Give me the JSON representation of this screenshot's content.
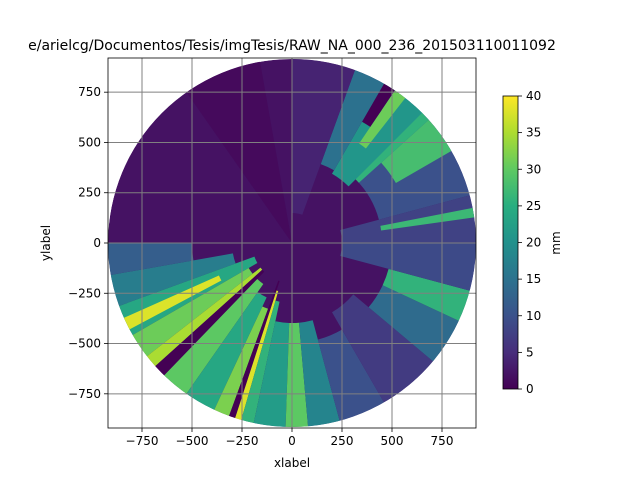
{
  "chart_data": {
    "type": "heatmap",
    "title": "e/arielcg/Documentos/Tesis/imgTesis/RAW_NA_000_236_201503110011092",
    "xlabel": "xlabel",
    "ylabel": "ylabel",
    "xlim": [
      -920,
      920
    ],
    "ylim": [
      -920,
      920
    ],
    "xticks": [
      -750,
      -500,
      -250,
      0,
      250,
      500,
      750
    ],
    "yticks": [
      -750,
      -500,
      -250,
      0,
      250,
      500,
      750
    ],
    "xtick_labels": [
      "−750",
      "−500",
      "−250",
      "0",
      "250",
      "500",
      "750"
    ],
    "ytick_labels": [
      "−750",
      "−500",
      "−250",
      "0",
      "250",
      "500",
      "750"
    ],
    "grid": true,
    "grid_color": "#808080",
    "domain_radius": 920,
    "colormap": "viridis",
    "colorbar": {
      "label": "mm",
      "min": 0,
      "max": 40,
      "ticks": [
        0,
        5,
        10,
        15,
        20,
        25,
        30,
        35,
        40
      ],
      "tick_labels": [
        "0",
        "5",
        "10",
        "15",
        "20",
        "25",
        "30",
        "35",
        "40"
      ]
    },
    "value_field": {
      "default_value": 2,
      "sectors": [
        {
          "angle_start": 0,
          "angle_end": 15,
          "r_min": 250,
          "r_max": 920,
          "value": 8
        },
        {
          "angle_start": 8,
          "angle_end": 11,
          "r_min": 450,
          "r_max": 920,
          "value": 27
        },
        {
          "angle_start": 15,
          "angle_end": 45,
          "r_min": 450,
          "r_max": 920,
          "value": 10
        },
        {
          "angle_start": 30,
          "angle_end": 42,
          "r_min": 600,
          "r_max": 920,
          "value": 28
        },
        {
          "angle_start": 42,
          "angle_end": 48,
          "r_min": 450,
          "r_max": 920,
          "value": 26
        },
        {
          "angle_start": 45,
          "angle_end": 60,
          "r_min": 400,
          "r_max": 920,
          "value": 21
        },
        {
          "angle_start": 52,
          "angle_end": 56,
          "r_min": 600,
          "r_max": 920,
          "value": 31
        },
        {
          "angle_start": 56,
          "angle_end": 60,
          "r_min": 700,
          "r_max": 920,
          "value": 0
        },
        {
          "angle_start": 60,
          "angle_end": 70,
          "r_min": 420,
          "r_max": 920,
          "value": 15
        },
        {
          "angle_start": 70,
          "angle_end": 90,
          "r_min": 150,
          "r_max": 920,
          "value": 4
        },
        {
          "angle_start": 100,
          "angle_end": 125,
          "r_min": 0,
          "r_max": 920,
          "value": 1
        },
        {
          "angle_start": 180,
          "angle_end": 190,
          "r_min": 500,
          "r_max": 920,
          "value": 12
        },
        {
          "angle_start": 190,
          "angle_end": 200,
          "r_min": 300,
          "r_max": 920,
          "value": 17
        },
        {
          "angle_start": 200,
          "angle_end": 210,
          "r_min": 200,
          "r_max": 920,
          "value": 24
        },
        {
          "angle_start": 204,
          "angle_end": 208,
          "r_min": 400,
          "r_max": 920,
          "value": 38
        },
        {
          "angle_start": 210,
          "angle_end": 218,
          "r_min": 250,
          "r_max": 920,
          "value": 31
        },
        {
          "angle_start": 218,
          "angle_end": 222,
          "r_min": 200,
          "r_max": 920,
          "value": 35
        },
        {
          "angle_start": 222,
          "angle_end": 226,
          "r_min": 200,
          "r_max": 920,
          "value": 0
        },
        {
          "angle_start": 226,
          "angle_end": 235,
          "r_min": 250,
          "r_max": 920,
          "value": 30
        },
        {
          "angle_start": 235,
          "angle_end": 245,
          "r_min": 300,
          "r_max": 920,
          "value": 24
        },
        {
          "angle_start": 245,
          "angle_end": 250,
          "r_min": 350,
          "r_max": 920,
          "value": 32
        },
        {
          "angle_start": 250,
          "angle_end": 252,
          "r_min": 200,
          "r_max": 920,
          "value": 0
        },
        {
          "angle_start": 252,
          "angle_end": 254,
          "r_min": 250,
          "r_max": 920,
          "value": 38
        },
        {
          "angle_start": 254,
          "angle_end": 258,
          "r_min": 300,
          "r_max": 920,
          "value": 26
        },
        {
          "angle_start": 258,
          "angle_end": 268,
          "r_min": 400,
          "r_max": 920,
          "value": 22
        },
        {
          "angle_start": 268,
          "angle_end": 275,
          "r_min": 400,
          "r_max": 920,
          "value": 30
        },
        {
          "angle_start": 275,
          "angle_end": 285,
          "r_min": 400,
          "r_max": 920,
          "value": 18
        },
        {
          "angle_start": 285,
          "angle_end": 300,
          "r_min": 500,
          "r_max": 920,
          "value": 10
        },
        {
          "angle_start": 300,
          "angle_end": 320,
          "r_min": 400,
          "r_max": 920,
          "value": 7
        },
        {
          "angle_start": 320,
          "angle_end": 335,
          "r_min": 500,
          "r_max": 920,
          "value": 14
        },
        {
          "angle_start": 335,
          "angle_end": 345,
          "r_min": 500,
          "r_max": 920,
          "value": 26
        },
        {
          "angle_start": 345,
          "angle_end": 360,
          "r_min": 250,
          "r_max": 920,
          "value": 9
        }
      ]
    }
  }
}
